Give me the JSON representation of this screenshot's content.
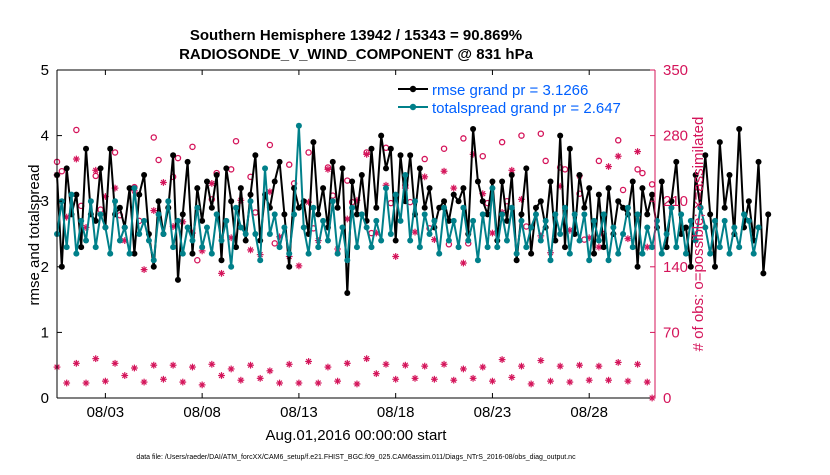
{
  "chart_data": {
    "type": "line",
    "title_line1": "Southern Hemisphere 13942 / 15343 = 90.869%",
    "title_line2": "RADIOSONDE_V_WIND_COMPONENT @ 831 hPa",
    "xlabel": "Aug.01,2016 00:00:00 start",
    "ylabel_left": "rmse and totalspread",
    "ylabel_right": "# of obs: o=possible; ×=assimilated",
    "footer": "data file: /Users/raeder/DAI/ATM_forcXX/CAM6_setup/f.e21.FHIST_BGC.f09_025.CAM6assim.011/Diags_NTrS_2016-08/obs_diag_output.nc",
    "x_range_days": [
      0.5,
      31.4
    ],
    "ylim_left": [
      0,
      5
    ],
    "ylim_right": [
      0,
      350
    ],
    "x_tick_values": [
      3,
      8,
      13,
      18,
      23,
      28
    ],
    "x_tick_labels": [
      "08/03",
      "08/08",
      "08/13",
      "08/18",
      "08/23",
      "08/28"
    ],
    "y_left_ticks": [
      "0",
      "1",
      "2",
      "3",
      "4",
      "5"
    ],
    "y_right_ticks": [
      "0",
      "70",
      "140",
      "210",
      "280",
      "350"
    ],
    "colors": {
      "rmse": "#000000",
      "spread": "#00808a",
      "obs": "#d4145a",
      "legend_text": "#0060ff"
    },
    "x_start": 0.5,
    "x_step": 0.25,
    "series": [
      {
        "name": "rmse grand pr = 3.1266",
        "key": "rmse",
        "values": [
          3.4,
          2.0,
          3.5,
          2.8,
          3.1,
          2.3,
          3.8,
          2.8,
          2.7,
          3.5,
          2.6,
          3.8,
          2.8,
          2.9,
          2.6,
          3.2,
          2.2,
          3.1,
          3.4,
          2.5,
          2.0,
          3.0,
          2.5,
          2.9,
          3.7,
          1.8,
          2.8,
          3.6,
          2.2,
          3.2,
          2.7,
          3.3,
          2.9,
          3.4,
          2.1,
          3.5,
          3.0,
          2.3,
          3.2,
          2.4,
          3.1,
          3.7,
          2.4,
          3.1,
          2.9,
          3.3,
          3.6,
          2.8,
          2.0,
          3.2,
          2.9,
          3.0,
          2.5,
          3.9,
          2.8,
          3.2,
          2.6,
          3.6,
          2.9,
          3.5,
          1.6,
          3.3,
          2.8,
          3.4,
          2.7,
          3.8,
          2.9,
          4.0,
          3.5,
          3.8,
          2.4,
          3.7,
          3.0,
          3.7,
          2.8,
          3.5,
          2.9,
          3.2,
          2.6,
          2.9,
          3.0,
          2.7,
          3.1,
          3.0,
          3.2,
          2.5,
          4.1,
          3.3,
          3.0,
          2.8,
          3.3,
          2.4,
          3.3,
          2.7,
          3.4,
          2.1,
          2.8,
          3.5,
          2.2,
          2.9,
          3.0,
          2.6,
          3.3,
          2.4,
          4.0,
          2.3,
          3.8,
          2.5,
          3.4,
          2.9,
          3.2,
          2.2,
          3.1,
          2.3,
          3.2,
          2.5,
          3.0,
          2.9,
          2.8,
          3.3,
          2.0,
          3.2,
          2.8,
          3.1,
          2.6,
          3.3,
          2.3,
          3.0,
          3.6,
          2.5,
          2.6,
          2.0,
          3.4,
          2.9,
          3.7,
          2.8,
          2.0,
          3.9,
          2.9,
          3.4,
          2.5,
          4.1,
          2.6,
          3.0,
          2.4,
          3.6,
          1.9,
          2.8
        ]
      },
      {
        "name": "totalspread grand pr = 2.647",
        "key": "spread",
        "values": [
          2.5,
          3.0,
          2.3,
          3.1,
          2.2,
          2.7,
          2.4,
          3.0,
          2.3,
          2.8,
          2.6,
          2.2,
          3.0,
          2.4,
          2.6,
          2.2,
          3.2,
          2.5,
          2.7,
          2.4,
          2.1,
          2.8,
          2.5,
          3.0,
          2.3,
          2.7,
          2.2,
          2.6,
          2.4,
          2.9,
          2.3,
          2.6,
          2.2,
          2.8,
          2.4,
          2.7,
          2.0,
          2.9,
          2.6,
          2.5,
          3.0,
          2.5,
          2.1,
          3.5,
          2.5,
          2.8,
          2.3,
          2.6,
          2.2,
          2.8,
          4.15,
          2.6,
          2.2,
          2.9,
          2.3,
          2.7,
          2.4,
          3.0,
          2.2,
          2.6,
          2.1,
          2.9,
          2.3,
          2.8,
          2.6,
          2.3,
          2.7,
          2.4,
          3.2,
          2.5,
          3.1,
          2.7,
          3.4,
          2.4,
          3.0,
          2.3,
          2.8,
          2.5,
          2.7,
          2.2,
          2.9,
          2.4,
          2.7,
          2.3,
          2.9,
          2.4,
          2.7,
          2.1,
          2.8,
          2.3,
          3.2,
          2.3,
          2.8,
          2.4,
          2.9,
          2.2,
          2.7,
          2.3,
          2.6,
          2.8,
          2.4,
          2.7,
          2.1,
          2.8,
          2.5,
          2.9,
          2.2,
          2.8,
          2.4,
          2.8,
          2.1,
          2.7,
          2.4,
          2.8,
          2.1,
          2.6,
          2.2,
          2.5,
          2.9,
          2.3,
          2.8,
          2.2,
          2.6,
          2.3,
          2.7,
          2.2,
          2.5,
          2.9,
          2.3,
          2.8,
          2.2,
          2.7,
          2.4,
          2.9,
          2.6,
          2.2,
          2.7,
          2.3,
          2.7,
          2.2,
          2.6,
          2.3,
          2.8,
          2.7,
          2.2,
          2.6
        ]
      }
    ],
    "possible_obs": {
      "x": [
        0.5,
        1.5,
        2.5,
        3.5,
        4.5,
        5.5,
        6.5,
        7.5,
        8.5,
        9.5,
        10.5,
        11.5,
        12.5,
        13.5,
        14.5,
        15.5,
        16.5,
        17.5,
        18.5,
        19.5,
        20.5,
        21.5,
        22.5,
        23.5,
        24.5,
        25.5,
        26.5,
        27.5,
        28.5,
        29.5,
        30.5,
        31.25,
        0.75,
        1.75,
        2.75,
        3.75,
        4.75,
        5.75,
        6.75,
        7.75,
        8.75,
        9.75,
        10.75,
        11.75,
        12.75,
        13.75,
        14.75,
        15.75,
        16.75,
        17.75,
        18.75,
        19.75,
        20.75,
        21.75,
        22.75,
        23.75,
        24.75,
        25.75,
        26.75,
        27.75,
        28.75,
        29.75,
        30.75
      ],
      "values": [
        252,
        286,
        237,
        262,
        225,
        278,
        236,
        268,
        212,
        244,
        236,
        270,
        249,
        262,
        246,
        232,
        262,
        267,
        227,
        255,
        266,
        277,
        258,
        273,
        280,
        282,
        246,
        218,
        253,
        275,
        244,
        228,
        242,
        205,
        201,
        195,
        189,
        254,
        256,
        147,
        240,
        274,
        198,
        165,
        229,
        181,
        216,
        209,
        176,
        208,
        209,
        181,
        164,
        165,
        208,
        210,
        183,
        253,
        244,
        169,
        175,
        222,
        240
      ]
    },
    "assimilated_obs_high": {
      "x": [
        0.5,
        1.0,
        1.5,
        2.0,
        2.5,
        3.0,
        3.5,
        4.0,
        4.5,
        5.0,
        5.5,
        6.0,
        6.5,
        7.0,
        7.5,
        8.0,
        8.5,
        9.0,
        9.5,
        10.0,
        10.5,
        11.0,
        11.5,
        12.0,
        12.5,
        13.0,
        13.5,
        14.0,
        14.5,
        15.0,
        15.5,
        16.0,
        16.5,
        17.0,
        17.5,
        18.0,
        18.5,
        19.0,
        19.5,
        20.0,
        20.5,
        21.0,
        21.5,
        22.0,
        22.5,
        23.0,
        23.5,
        24.0,
        24.5,
        25.0,
        25.5,
        26.0,
        26.5,
        27.0,
        27.5,
        28.0,
        28.5,
        29.0,
        29.5,
        30.0,
        30.5,
        31.0
      ],
      "values": [
        238,
        193,
        255,
        182,
        243,
        215,
        224,
        168,
        221,
        137,
        200,
        230,
        183,
        188,
        176,
        157,
        229,
        133,
        171,
        211,
        158,
        153,
        220,
        172,
        151,
        141,
        209,
        168,
        244,
        159,
        191,
        211,
        260,
        176,
        227,
        151,
        224,
        177,
        236,
        169,
        242,
        224,
        144,
        260,
        218,
        176,
        198,
        243,
        212,
        310,
        173,
        155,
        226,
        179,
        237,
        171,
        161,
        247,
        258,
        170,
        263,
        161
      ]
    },
    "assimilated_obs_low": {
      "x": [
        0.5,
        1.0,
        1.5,
        2.0,
        2.5,
        3.0,
        3.5,
        4.0,
        4.5,
        5.0,
        5.5,
        6.0,
        6.5,
        7.0,
        7.5,
        8.0,
        8.5,
        9.0,
        9.5,
        10.0,
        10.5,
        11.0,
        11.5,
        12.0,
        12.5,
        13.0,
        13.5,
        14.0,
        14.5,
        15.0,
        15.5,
        16.0,
        16.5,
        17.0,
        17.5,
        18.0,
        18.5,
        19.0,
        19.5,
        20.0,
        20.5,
        21.0,
        21.5,
        22.0,
        22.5,
        23.0,
        23.5,
        24.0,
        24.5,
        25.0,
        25.5,
        26.0,
        26.5,
        27.0,
        27.5,
        28.0,
        28.5,
        29.0,
        29.5,
        30.0,
        30.5,
        31.0,
        31.25
      ],
      "values": [
        33,
        16,
        37,
        16,
        42,
        18,
        37,
        24,
        32,
        17,
        35,
        20,
        35,
        17,
        33,
        14,
        36,
        24,
        31,
        19,
        35,
        21,
        29,
        16,
        36,
        16,
        39,
        16,
        33,
        18,
        37,
        15,
        42,
        26,
        36,
        20,
        35,
        21,
        34,
        20,
        36,
        19,
        31,
        21,
        33,
        18,
        41,
        22,
        34,
        15,
        40,
        18,
        34,
        17,
        35,
        19,
        34,
        19,
        38,
        18,
        36,
        17,
        0
      ]
    }
  }
}
